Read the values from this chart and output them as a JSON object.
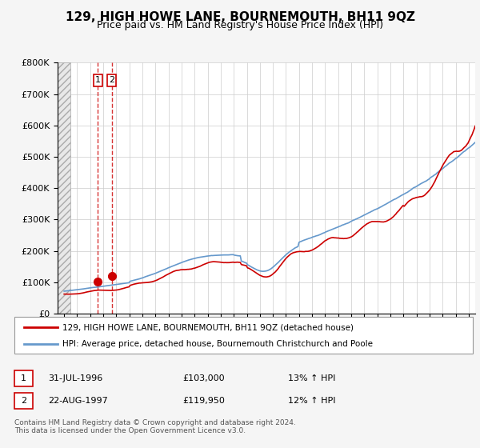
{
  "title": "129, HIGH HOWE LANE, BOURNEMOUTH, BH11 9QZ",
  "subtitle": "Price paid vs. HM Land Registry's House Price Index (HPI)",
  "ylabel_values": [
    "£0",
    "£100K",
    "£200K",
    "£300K",
    "£400K",
    "£500K",
    "£600K",
    "£700K",
    "£800K"
  ],
  "ylim": [
    0,
    800000
  ],
  "yticks": [
    0,
    100000,
    200000,
    300000,
    400000,
    500000,
    600000,
    700000,
    800000
  ],
  "hpi_color": "#6699cc",
  "price_color": "#cc0000",
  "background_color": "#f5f5f5",
  "plot_bg": "#ffffff",
  "grid_color": "#cccccc",
  "sale1_date": 1996.58,
  "sale1_price": 103000,
  "sale1_label": "1",
  "sale2_date": 1997.65,
  "sale2_price": 119950,
  "sale2_label": "2",
  "legend_line1": "129, HIGH HOWE LANE, BOURNEMOUTH, BH11 9QZ (detached house)",
  "legend_line2": "HPI: Average price, detached house, Bournemouth Christchurch and Poole",
  "table_row1": [
    "1",
    "31-JUL-1996",
    "£103,000",
    "13% ↑ HPI"
  ],
  "table_row2": [
    "2",
    "22-AUG-1997",
    "£119,950",
    "12% ↑ HPI"
  ],
  "footer": "Contains HM Land Registry data © Crown copyright and database right 2024.\nThis data is licensed under the Open Government Licence v3.0.",
  "xlim_start": 1993.5,
  "xlim_end": 2025.5,
  "hatch_end": 1994.5
}
